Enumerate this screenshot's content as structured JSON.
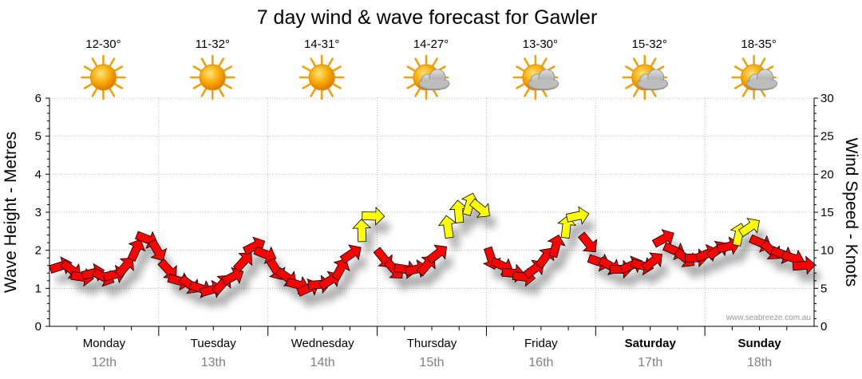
{
  "chart_data": {
    "type": "line",
    "title": "7 day wind & wave forecast for Gawler",
    "ylabel_left": "Wave Height - Metres",
    "ylabel_right": "Wind Speed - Knots",
    "ylim_left": [
      0,
      6
    ],
    "ylim_right": [
      0,
      30
    ],
    "yticks_left": [
      "0",
      "1",
      "2",
      "3",
      "4",
      "5",
      "6"
    ],
    "yticks_right": [
      "0",
      "5",
      "10",
      "15",
      "20",
      "25",
      "30"
    ],
    "credit": "www.seabreeze.com.au",
    "days": [
      {
        "name": "Monday",
        "date": "12th",
        "temp": "12-30°",
        "weather": "sunny",
        "bold": false
      },
      {
        "name": "Tuesday",
        "date": "13th",
        "temp": "11-32°",
        "weather": "sunny",
        "bold": false
      },
      {
        "name": "Wednesday",
        "date": "14th",
        "temp": "14-31°",
        "weather": "sunny",
        "bold": false
      },
      {
        "name": "Thursday",
        "date": "15th",
        "temp": "14-27°",
        "weather": "partly-cloudy",
        "bold": false
      },
      {
        "name": "Friday",
        "date": "16th",
        "temp": "13-30°",
        "weather": "partly-cloudy",
        "bold": false
      },
      {
        "name": "Saturday",
        "date": "17th",
        "temp": "15-32°",
        "weather": "partly-cloudy",
        "bold": true
      },
      {
        "name": "Sunday",
        "date": "18th",
        "temp": "18-35°",
        "weather": "partly-cloudy",
        "bold": true
      }
    ],
    "wind_series": {
      "name": "Wind Speed",
      "units": "knots",
      "values": [
        7.9,
        7.5,
        6.5,
        7,
        6.5,
        6.8,
        7.8,
        10,
        11.5,
        10,
        7.5,
        6,
        5.5,
        5,
        4.8,
        5.5,
        6.5,
        8.5,
        10.5,
        9.5,
        7.5,
        6.5,
        5.5,
        5,
        5.5,
        6,
        7.5,
        9.5,
        12.5,
        14.5,
        9,
        7.5,
        7.5,
        7.5,
        8,
        9.5,
        13,
        15,
        16,
        15.5,
        9,
        8,
        7,
        6.5,
        7.5,
        9,
        10.5,
        13,
        14.5,
        11,
        8.5,
        8,
        7.5,
        8,
        8,
        8.5,
        11.5,
        10,
        9,
        9,
        9.5,
        10,
        10.5,
        12,
        13,
        11,
        10,
        9.5,
        9,
        8
      ]
    },
    "wind_colors": {
      "light": "#ffff00",
      "strong": "#ff0000",
      "outline": "#000000"
    }
  }
}
